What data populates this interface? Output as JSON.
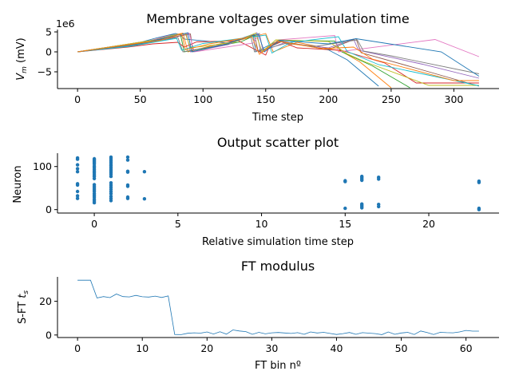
{
  "chart_data": [
    {
      "type": "line",
      "title": "Membrane voltages over simulation time",
      "xlabel": "Time step",
      "ylabel_main": "V",
      "ylabel_sub": "m",
      "ylabel_unit": " (mV)",
      "offset_text": "1e6",
      "xlim": [
        -16,
        336
      ],
      "ylim": [
        -9.2,
        5.6
      ],
      "xticks": [
        0,
        50,
        100,
        150,
        200,
        250,
        300
      ],
      "yticks": [
        -5,
        0,
        5
      ],
      "colors": [
        "#1f77b4",
        "#ff7f0e",
        "#2ca02c",
        "#d62728",
        "#9467bd",
        "#8c564b",
        "#e377c2",
        "#7f7f7f",
        "#bcbd22",
        "#17becf"
      ],
      "series": [
        {
          "x": [
            0,
            50,
            63,
            78,
            82,
            85,
            120,
            140,
            142,
            160,
            200,
            215,
            240
          ],
          "y": [
            0,
            2.4,
            3.5,
            4.6,
            4.3,
            3.2,
            2.2,
            4.4,
            0,
            2.8,
            0.5,
            -2,
            -8.6
          ]
        },
        {
          "x": [
            0,
            55,
            70,
            84,
            88,
            110,
            125,
            150,
            156,
            175,
            210,
            225,
            250
          ],
          "y": [
            0,
            2.6,
            3.8,
            4.7,
            0,
            1.8,
            2.6,
            4.6,
            0,
            2.4,
            0.2,
            -2.5,
            -9
          ]
        },
        {
          "x": [
            0,
            60,
            75,
            82,
            85,
            130,
            145,
            148,
            160,
            205,
            210,
            235,
            265
          ],
          "y": [
            0,
            2.9,
            4.2,
            4.4,
            0,
            2.5,
            4.6,
            0,
            2.9,
            2.7,
            0.1,
            -3.5,
            -9
          ]
        },
        {
          "x": [
            0,
            40,
            60,
            80,
            85,
            95,
            128,
            150,
            153,
            162,
            175,
            210,
            245,
            270,
            320
          ],
          "y": [
            0,
            1.2,
            2.0,
            2.4,
            1.2,
            2.5,
            2.8,
            -0.8,
            1.5,
            2.6,
            1.0,
            0.4,
            -2.8,
            -7.8,
            -7.8
          ]
        },
        {
          "x": [
            0,
            45,
            65,
            87,
            90,
            120,
            143,
            146,
            165,
            200,
            220,
            224,
            275,
            320
          ],
          "y": [
            0,
            1.6,
            2.9,
            4.4,
            0,
            1.8,
            4.8,
            0,
            2.3,
            1.0,
            3.2,
            0.4,
            -3.1,
            -6.6
          ]
        },
        {
          "x": [
            0,
            50,
            70,
            90,
            92,
            115,
            141,
            144,
            163,
            200,
            222,
            226,
            270,
            320
          ],
          "y": [
            0,
            2.0,
            3.3,
            4.5,
            0,
            1.7,
            4.3,
            0,
            2.6,
            0.6,
            3.3,
            -0.2,
            -4.1,
            -8.6
          ]
        },
        {
          "x": [
            0,
            58,
            72,
            89,
            93,
            140,
            145,
            148,
            160,
            205,
            208,
            285,
            320
          ],
          "y": [
            0,
            2.8,
            4.0,
            4.7,
            0,
            2.2,
            4.5,
            0,
            3.0,
            4.1,
            0,
            3.1,
            -1.2
          ]
        },
        {
          "x": [
            0,
            48,
            68,
            80,
            84,
            110,
            138,
            141,
            166,
            190,
            223,
            228,
            250,
            320
          ],
          "y": [
            0,
            1.8,
            3.0,
            3.6,
            0,
            1.5,
            4.0,
            0,
            2.1,
            1.4,
            3.0,
            0.2,
            -1.0,
            -5.5
          ]
        },
        {
          "x": [
            0,
            62,
            74,
            86,
            90,
            125,
            142,
            147,
            158,
            200,
            215,
            230,
            280,
            320
          ],
          "y": [
            0,
            3.0,
            4.0,
            4.6,
            1.0,
            2.4,
            4.7,
            0,
            3.0,
            2.6,
            -0.5,
            -2.6,
            -8.4,
            -8.4
          ]
        },
        {
          "x": [
            0,
            42,
            64,
            79,
            83,
            100,
            150,
            155,
            170,
            208,
            215,
            240,
            320
          ],
          "y": [
            0,
            1.4,
            2.6,
            3.4,
            0.4,
            2.1,
            4.2,
            -0.3,
            2.4,
            3.8,
            0.1,
            -3.2,
            -8.5
          ]
        },
        {
          "x": [
            0,
            52,
            71,
            88,
            91,
            118,
            144,
            149,
            161,
            200,
            222,
            290,
            320
          ],
          "y": [
            0,
            2.2,
            3.6,
            4.8,
            0,
            1.9,
            4.5,
            0,
            2.9,
            2.0,
            3.3,
            0,
            -6.1
          ]
        },
        {
          "x": [
            0,
            56,
            66,
            83,
            86,
            105,
            139,
            145,
            159,
            195,
            220,
            235,
            300,
            320
          ],
          "y": [
            0,
            2.5,
            2.9,
            4.5,
            0.5,
            2.0,
            3.8,
            -0.6,
            2.7,
            0.8,
            1.2,
            -1.8,
            -7.2,
            -7.2
          ]
        }
      ]
    },
    {
      "type": "scatter",
      "title": "Output scatter plot",
      "xlabel": "Relative simulation time step",
      "ylabel": "Neuron",
      "xlim": [
        -2.2,
        24.2
      ],
      "ylim": [
        -8,
        131
      ],
      "xticks": [
        0,
        5,
        10,
        15,
        20
      ],
      "yticks": [
        0,
        100
      ],
      "color": "#1f77b4",
      "points": [
        {
          "x": -1,
          "y": 120
        },
        {
          "x": -1,
          "y": 117
        },
        {
          "x": -1,
          "y": 104
        },
        {
          "x": -1,
          "y": 95
        },
        {
          "x": -1,
          "y": 88
        },
        {
          "x": -1,
          "y": 60
        },
        {
          "x": -1,
          "y": 57
        },
        {
          "x": -1,
          "y": 42
        },
        {
          "x": -1,
          "y": 32
        },
        {
          "x": -1,
          "y": 26
        },
        {
          "x": 0,
          "y": 118
        },
        {
          "x": 0,
          "y": 115
        },
        {
          "x": 0,
          "y": 112
        },
        {
          "x": 0,
          "y": 109
        },
        {
          "x": 0,
          "y": 106
        },
        {
          "x": 0,
          "y": 101
        },
        {
          "x": 0,
          "y": 97
        },
        {
          "x": 0,
          "y": 93
        },
        {
          "x": 0,
          "y": 89
        },
        {
          "x": 0,
          "y": 85
        },
        {
          "x": 0,
          "y": 81
        },
        {
          "x": 0,
          "y": 77
        },
        {
          "x": 0,
          "y": 72
        },
        {
          "x": 0,
          "y": 58
        },
        {
          "x": 0,
          "y": 54
        },
        {
          "x": 0,
          "y": 50
        },
        {
          "x": 0,
          "y": 46
        },
        {
          "x": 0,
          "y": 42
        },
        {
          "x": 0,
          "y": 37
        },
        {
          "x": 0,
          "y": 33
        },
        {
          "x": 0,
          "y": 29
        },
        {
          "x": 0,
          "y": 24
        },
        {
          "x": 0,
          "y": 20
        },
        {
          "x": 0,
          "y": 16
        },
        {
          "x": 1,
          "y": 122
        },
        {
          "x": 1,
          "y": 118
        },
        {
          "x": 1,
          "y": 114
        },
        {
          "x": 1,
          "y": 110
        },
        {
          "x": 1,
          "y": 106
        },
        {
          "x": 1,
          "y": 102
        },
        {
          "x": 1,
          "y": 98
        },
        {
          "x": 1,
          "y": 94
        },
        {
          "x": 1,
          "y": 90
        },
        {
          "x": 1,
          "y": 86
        },
        {
          "x": 1,
          "y": 82
        },
        {
          "x": 1,
          "y": 77
        },
        {
          "x": 1,
          "y": 62
        },
        {
          "x": 1,
          "y": 57
        },
        {
          "x": 1,
          "y": 52
        },
        {
          "x": 1,
          "y": 47
        },
        {
          "x": 1,
          "y": 42
        },
        {
          "x": 1,
          "y": 37
        },
        {
          "x": 1,
          "y": 31
        },
        {
          "x": 1,
          "y": 26
        },
        {
          "x": 1,
          "y": 21
        },
        {
          "x": 2,
          "y": 122
        },
        {
          "x": 2,
          "y": 115
        },
        {
          "x": 2,
          "y": 89
        },
        {
          "x": 2,
          "y": 87
        },
        {
          "x": 2,
          "y": 57
        },
        {
          "x": 2,
          "y": 54
        },
        {
          "x": 2,
          "y": 29
        },
        {
          "x": 2,
          "y": 26
        },
        {
          "x": 3,
          "y": 88
        },
        {
          "x": 3,
          "y": 25
        },
        {
          "x": 15,
          "y": 67
        },
        {
          "x": 15,
          "y": 65
        },
        {
          "x": 15,
          "y": 3
        },
        {
          "x": 16,
          "y": 77
        },
        {
          "x": 16,
          "y": 74
        },
        {
          "x": 16,
          "y": 71
        },
        {
          "x": 16,
          "y": 68
        },
        {
          "x": 16,
          "y": 13
        },
        {
          "x": 16,
          "y": 10
        },
        {
          "x": 16,
          "y": 7
        },
        {
          "x": 16,
          "y": 4
        },
        {
          "x": 17,
          "y": 75
        },
        {
          "x": 17,
          "y": 71
        },
        {
          "x": 17,
          "y": 12
        },
        {
          "x": 17,
          "y": 7
        },
        {
          "x": 23,
          "y": 66
        },
        {
          "x": 23,
          "y": 63
        },
        {
          "x": 23,
          "y": 3
        },
        {
          "x": 23,
          "y": 0
        }
      ]
    },
    {
      "type": "line",
      "title": "FT modulus",
      "xlabel": "FT bin nº",
      "ylabel_main": "S-FT ",
      "ylabel_var": "t",
      "ylabel_sub": "s",
      "xlim": [
        -3.1,
        65.1
      ],
      "ylim": [
        -1.5,
        34.5
      ],
      "xticks": [
        0,
        10,
        20,
        30,
        40,
        50,
        60
      ],
      "yticks": [
        0,
        20
      ],
      "color": "#1f77b4",
      "x": [
        0,
        1,
        2,
        3,
        4,
        5,
        6,
        7,
        8,
        9,
        10,
        11,
        12,
        13,
        14,
        15,
        16,
        17,
        18,
        19,
        20,
        21,
        22,
        23,
        24,
        25,
        26,
        27,
        28,
        29,
        30,
        31,
        32,
        33,
        34,
        35,
        36,
        37,
        38,
        39,
        40,
        41,
        42,
        43,
        44,
        45,
        46,
        47,
        48,
        49,
        50,
        51,
        52,
        53,
        54,
        55,
        56,
        57,
        58,
        59,
        60,
        61,
        62
      ],
      "y": [
        32.5,
        32.5,
        32.5,
        22.0,
        22.8,
        22.2,
        24.3,
        22.8,
        22.6,
        23.5,
        22.7,
        22.5,
        23.1,
        22.3,
        23.2,
        0.3,
        0.2,
        1.0,
        1.3,
        1.1,
        1.8,
        0.6,
        1.9,
        0.5,
        3.0,
        2.4,
        2.0,
        0.4,
        1.6,
        0.7,
        1.3,
        1.5,
        1.2,
        0.9,
        1.4,
        0.4,
        1.8,
        1.2,
        1.6,
        0.9,
        0.3,
        0.8,
        1.5,
        0.4,
        1.4,
        1.1,
        0.8,
        0.2,
        1.8,
        0.4,
        1.2,
        1.6,
        0.3,
        2.4,
        1.5,
        0.3,
        1.6,
        1.4,
        1.3,
        1.8,
        2.7,
        2.3,
        2.3
      ]
    }
  ]
}
